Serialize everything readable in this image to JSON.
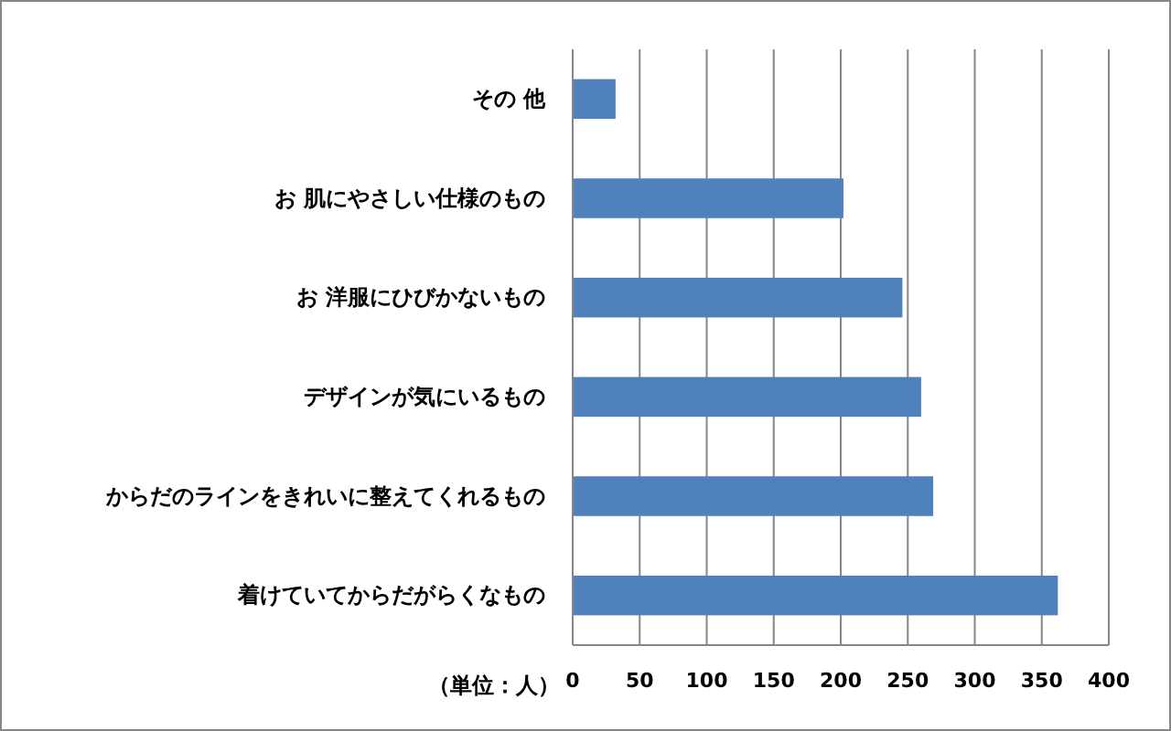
{
  "chart_data": {
    "type": "bar",
    "orientation": "horizontal",
    "xlabel": "（単位：人）",
    "categories": [
      "その 他",
      "お 肌にやさしい仕様のもの",
      "お 洋服にひびかないもの",
      "デザインが気にいるもの",
      "からだのラインをきれいに整えてくれるもの",
      "着けていてからだがらくなもの"
    ],
    "values": [
      32,
      202,
      246,
      260,
      269,
      362
    ],
    "color": "#4f81bd",
    "xlim": [
      0,
      400
    ],
    "xticks": [
      0,
      50,
      100,
      150,
      200,
      250,
      300,
      350,
      400
    ],
    "grid": "x"
  }
}
